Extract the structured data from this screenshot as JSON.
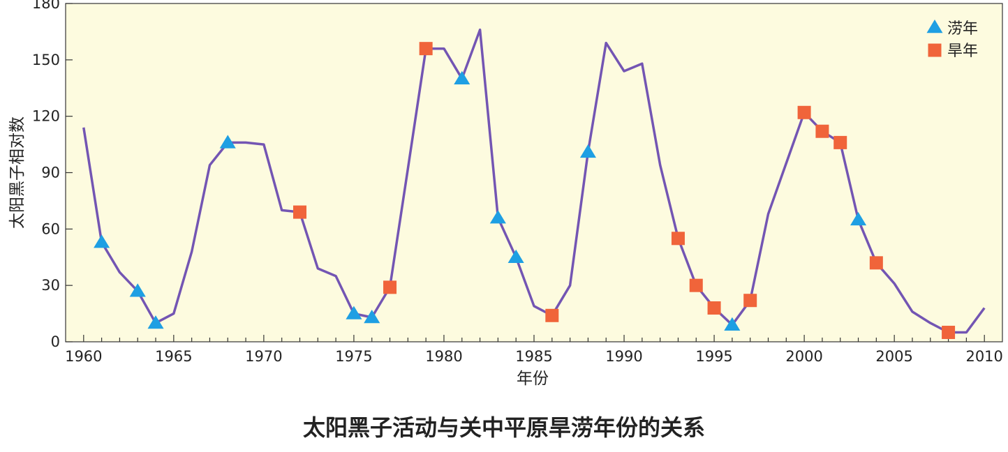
{
  "caption": "太阳黑子活动与关中平原旱涝年份的关系",
  "colors": {
    "plot_background": "#fdfbdf",
    "line": "#7355b3",
    "flood_marker": "#1e9fe3",
    "drought_marker": "#f0643a"
  },
  "chart_data": {
    "type": "line",
    "title": "太阳黑子活动与关中平原旱涝年份的关系",
    "xlabel": "年份",
    "ylabel": "太阳黑子相对数",
    "xlim": [
      1959,
      2011
    ],
    "ylim": [
      0,
      180
    ],
    "x_ticks": [
      1960,
      1965,
      1970,
      1975,
      1980,
      1985,
      1990,
      1995,
      2000,
      2005,
      2010
    ],
    "x_tick_labels": [
      "1960",
      "1965",
      "1970",
      "1975",
      "1980",
      "1985",
      "1990",
      "1995",
      "2000",
      "2005",
      "2010"
    ],
    "y_ticks": [
      0,
      30,
      60,
      90,
      120,
      150,
      180
    ],
    "y_tick_labels": [
      "0",
      "30",
      "60",
      "90",
      "120",
      "150",
      "180"
    ],
    "legend_position": "top-right",
    "legend": [
      {
        "label": "涝年",
        "marker": "triangle"
      },
      {
        "label": "旱年",
        "marker": "square"
      }
    ],
    "series": [
      {
        "name": "太阳黑子相对数",
        "points": [
          [
            1960,
            114
          ],
          [
            1961,
            53
          ],
          [
            1962,
            37
          ],
          [
            1963,
            27
          ],
          [
            1964,
            10
          ],
          [
            1965,
            15
          ],
          [
            1966,
            48
          ],
          [
            1967,
            94
          ],
          [
            1968,
            106
          ],
          [
            1969,
            106
          ],
          [
            1970,
            105
          ],
          [
            1971,
            70
          ],
          [
            1972,
            69
          ],
          [
            1973,
            39
          ],
          [
            1974,
            35
          ],
          [
            1975,
            15
          ],
          [
            1976,
            13
          ],
          [
            1977,
            29
          ],
          [
            1978,
            92
          ],
          [
            1979,
            156
          ],
          [
            1980,
            156
          ],
          [
            1981,
            140
          ],
          [
            1982,
            166
          ],
          [
            1983,
            66
          ],
          [
            1984,
            45
          ],
          [
            1985,
            19
          ],
          [
            1986,
            14
          ],
          [
            1987,
            30
          ],
          [
            1988,
            101
          ],
          [
            1989,
            159
          ],
          [
            1990,
            144
          ],
          [
            1991,
            148
          ],
          [
            1992,
            94
          ],
          [
            1993,
            55
          ],
          [
            1994,
            30
          ],
          [
            1995,
            18
          ],
          [
            1996,
            9
          ],
          [
            1997,
            22
          ],
          [
            1998,
            68
          ],
          [
            1999,
            95
          ],
          [
            2000,
            122
          ],
          [
            2001,
            112
          ],
          [
            2002,
            106
          ],
          [
            2003,
            65
          ],
          [
            2004,
            42
          ],
          [
            2005,
            31
          ],
          [
            2006,
            16
          ],
          [
            2007,
            10
          ],
          [
            2008,
            5
          ],
          [
            2009,
            5
          ],
          [
            2010,
            18
          ]
        ]
      }
    ],
    "flood_years": [
      [
        1961,
        53
      ],
      [
        1963,
        27
      ],
      [
        1964,
        10
      ],
      [
        1968,
        106
      ],
      [
        1975,
        15
      ],
      [
        1976,
        13
      ],
      [
        1981,
        140
      ],
      [
        1983,
        66
      ],
      [
        1984,
        45
      ],
      [
        1988,
        101
      ],
      [
        1996,
        9
      ],
      [
        2003,
        65
      ]
    ],
    "drought_years": [
      [
        1972,
        69
      ],
      [
        1977,
        29
      ],
      [
        1979,
        156
      ],
      [
        1986,
        14
      ],
      [
        1993,
        55
      ],
      [
        1994,
        30
      ],
      [
        1995,
        18
      ],
      [
        1997,
        22
      ],
      [
        2000,
        122
      ],
      [
        2001,
        112
      ],
      [
        2002,
        106
      ],
      [
        2004,
        42
      ],
      [
        2008,
        5
      ]
    ]
  }
}
